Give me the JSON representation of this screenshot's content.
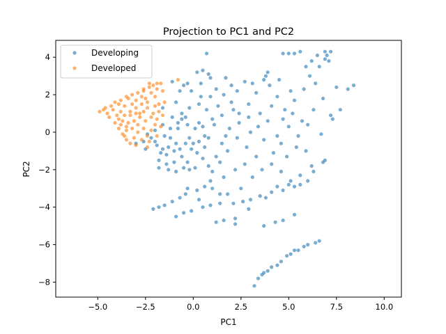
{
  "chart_data": {
    "type": "scatter",
    "title": "Projection to PC1 and PC2",
    "xlabel": "PC1",
    "ylabel": "PC2",
    "xlim": [
      -7.2,
      10.9
    ],
    "ylim": [
      -8.8,
      4.9
    ],
    "xticks": [
      -5.0,
      -2.5,
      0.0,
      2.5,
      5.0,
      7.5,
      10.0
    ],
    "xtick_labels": [
      "−5.0",
      "−2.5",
      "0.0",
      "2.5",
      "5.0",
      "7.5",
      "10.0"
    ],
    "yticks": [
      -8,
      -6,
      -4,
      -2,
      0,
      2,
      4
    ],
    "ytick_labels": [
      "−8",
      "−6",
      "−4",
      "−2",
      "0",
      "2",
      "4"
    ],
    "grid": false,
    "legend_position": "top-left",
    "series": [
      {
        "name": "Developing",
        "color": "#1f77b4",
        "points": [
          [
            0.7,
            4.2
          ],
          [
            0.5,
            3.3
          ],
          [
            0.2,
            3.2
          ],
          [
            -1.1,
            2.7
          ],
          [
            -0.7,
            2.2
          ],
          [
            -0.5,
            2.5
          ],
          [
            -0.3,
            2.6
          ],
          [
            0.8,
            3.1
          ],
          [
            0.4,
            2.6
          ],
          [
            0.9,
            2.9
          ],
          [
            -0.6,
            0.7
          ],
          [
            -1.2,
            -0.3
          ],
          [
            -0.9,
            -0.6
          ],
          [
            -1.4,
            -1.2
          ],
          [
            -1.0,
            -1.6
          ],
          [
            -0.5,
            -1.9
          ],
          [
            -0.2,
            -0.3
          ],
          [
            -0.8,
            0.2
          ],
          [
            -0.4,
            0.8
          ],
          [
            0.3,
            0.5
          ],
          [
            0.0,
            -0.6
          ],
          [
            -1.6,
            -0.9
          ],
          [
            -2.0,
            -0.5
          ],
          [
            -1.8,
            -1.5
          ],
          [
            -1.3,
            -2.0
          ],
          [
            -0.6,
            -1.3
          ],
          [
            0.2,
            -1.1
          ],
          [
            0.6,
            -0.2
          ],
          [
            1.0,
            0.7
          ],
          [
            1.3,
            1.4
          ],
          [
            0.9,
            1.9
          ],
          [
            1.6,
            2.0
          ],
          [
            2.0,
            1.6
          ],
          [
            2.4,
            1.0
          ],
          [
            2.9,
            1.5
          ],
          [
            3.3,
            2.1
          ],
          [
            3.7,
            2.8
          ],
          [
            3.8,
            3.0
          ],
          [
            4.0,
            2.5
          ],
          [
            4.4,
            1.9
          ],
          [
            4.8,
            1.2
          ],
          [
            5.3,
            1.7
          ],
          [
            5.8,
            2.3
          ],
          [
            6.1,
            3.0
          ],
          [
            6.6,
            3.5
          ],
          [
            7.0,
            4.1
          ],
          [
            6.9,
            4.3
          ],
          [
            7.5,
            2.4
          ],
          [
            8.1,
            2.3
          ],
          [
            8.4,
            2.5
          ],
          [
            7.7,
            1.2
          ],
          [
            7.3,
            0.7
          ],
          [
            6.7,
            -0.1
          ],
          [
            6.0,
            0.4
          ],
          [
            5.5,
            -0.2
          ],
          [
            5.0,
            0.3
          ],
          [
            4.6,
            -0.6
          ],
          [
            4.2,
            -1.1
          ],
          [
            3.7,
            -0.4
          ],
          [
            3.3,
            -1.3
          ],
          [
            2.8,
            -0.8
          ],
          [
            2.3,
            -0.3
          ],
          [
            1.8,
            -1.0
          ],
          [
            1.4,
            -1.6
          ],
          [
            1.0,
            -2.1
          ],
          [
            1.6,
            -2.4
          ],
          [
            2.2,
            -2.0
          ],
          [
            2.7,
            -1.7
          ],
          [
            3.1,
            -2.4
          ],
          [
            3.6,
            -2.0
          ],
          [
            4.1,
            -1.7
          ],
          [
            4.6,
            -2.1
          ],
          [
            5.1,
            -2.6
          ],
          [
            5.6,
            -2.3
          ],
          [
            6.2,
            -1.8
          ],
          [
            6.8,
            -1.6
          ],
          [
            5.9,
            -1.0
          ],
          [
            5.4,
            -0.8
          ],
          [
            4.9,
            -1.3
          ],
          [
            4.4,
            -0.2
          ],
          [
            3.9,
            0.6
          ],
          [
            3.4,
            0.3
          ],
          [
            2.9,
            0.8
          ],
          [
            2.4,
            0.5
          ],
          [
            1.9,
            0.2
          ],
          [
            1.5,
            0.9
          ],
          [
            2.1,
            1.2
          ],
          [
            3.0,
            0.0
          ],
          [
            3.5,
            1.0
          ],
          [
            4.1,
            1.4
          ],
          [
            4.7,
            0.7
          ],
          [
            5.2,
            1.0
          ],
          [
            5.7,
            0.6
          ],
          [
            6.3,
            1.2
          ],
          [
            6.8,
            1.8
          ],
          [
            7.2,
            0.9
          ],
          [
            6.4,
            2.6
          ],
          [
            5.1,
            2.2
          ],
          [
            4.5,
            2.8
          ],
          [
            3.9,
            3.2
          ],
          [
            -2.1,
            -4.1
          ],
          [
            -1.8,
            -4.0
          ],
          [
            -1.5,
            -3.9
          ],
          [
            -1.1,
            -3.7
          ],
          [
            -0.7,
            -3.5
          ],
          [
            -0.4,
            -3.3
          ],
          [
            0.2,
            -3.1
          ],
          [
            0.6,
            -2.9
          ],
          [
            0.9,
            -2.6
          ],
          [
            -0.9,
            -4.5
          ],
          [
            -0.5,
            -4.3
          ],
          [
            -0.1,
            -4.2
          ],
          [
            0.5,
            -4.0
          ],
          [
            0.9,
            -3.9
          ],
          [
            1.4,
            -3.8
          ],
          [
            2.1,
            -3.8
          ],
          [
            2.6,
            -3.7
          ],
          [
            3.0,
            -3.6
          ],
          [
            3.5,
            -3.4
          ],
          [
            4.1,
            -3.2
          ],
          [
            4.4,
            -2.9
          ],
          [
            5.0,
            -2.8
          ],
          [
            5.6,
            -2.8
          ],
          [
            6.0,
            -2.6
          ],
          [
            6.3,
            -2.1
          ],
          [
            6.9,
            -1.5
          ],
          [
            1.2,
            -4.8
          ],
          [
            1.6,
            -4.7
          ],
          [
            2.2,
            -4.6
          ],
          [
            2.2,
            -4.9
          ],
          [
            1.4,
            -3.3
          ],
          [
            1.8,
            -3.3
          ],
          [
            2.5,
            -3.0
          ],
          [
            1.0,
            -3.0
          ],
          [
            0.3,
            -3.6
          ],
          [
            -0.3,
            -3.0
          ],
          [
            3.8,
            -3.5
          ],
          [
            4.7,
            -3.1
          ],
          [
            5.3,
            -2.9
          ],
          [
            2.9,
            -4.1
          ],
          [
            3.7,
            -5.0
          ],
          [
            4.3,
            -4.8
          ],
          [
            4.7,
            -4.7
          ],
          [
            5.3,
            -4.4
          ],
          [
            5.8,
            -6.1
          ],
          [
            6.0,
            -6.0
          ],
          [
            6.4,
            -5.9
          ],
          [
            6.6,
            -5.8
          ],
          [
            5.5,
            -6.3
          ],
          [
            5.3,
            -6.3
          ],
          [
            4.9,
            -6.6
          ],
          [
            4.6,
            -6.9
          ],
          [
            4.1,
            -7.2
          ],
          [
            3.9,
            -7.4
          ],
          [
            3.6,
            -7.6
          ],
          [
            3.4,
            -7.8
          ],
          [
            3.2,
            -8.2
          ],
          [
            3.7,
            -7.5
          ],
          [
            4.4,
            -7.1
          ],
          [
            5.1,
            -6.5
          ],
          [
            -3.0,
            -0.6
          ],
          [
            -2.6,
            -0.5
          ],
          [
            -2.2,
            -0.3
          ],
          [
            -1.9,
            -0.7
          ],
          [
            -1.7,
            -1.1
          ],
          [
            -1.3,
            -0.8
          ],
          [
            -1.0,
            -1.0
          ],
          [
            -0.7,
            -0.9
          ],
          [
            -0.4,
            -0.6
          ],
          [
            -0.1,
            -0.9
          ],
          [
            0.3,
            -0.5
          ],
          [
            0.6,
            -0.8
          ],
          [
            -1.5,
            -0.2
          ],
          [
            -1.2,
            0.2
          ],
          [
            -0.8,
            0.5
          ],
          [
            -0.3,
            0.4
          ],
          [
            0.1,
            0.2
          ],
          [
            0.5,
            0.3
          ],
          [
            0.8,
            -0.3
          ],
          [
            -2.4,
            -0.1
          ],
          [
            -2.0,
            0.1
          ],
          [
            -1.6,
            0.4
          ],
          [
            -1.1,
            0.8
          ],
          [
            -0.6,
            1.0
          ],
          [
            -0.2,
            1.3
          ],
          [
            0.3,
            1.5
          ],
          [
            0.7,
            1.2
          ],
          [
            1.1,
            0.4
          ],
          [
            -1.4,
            -1.7
          ],
          [
            -0.9,
            -2.1
          ],
          [
            -0.3,
            -1.6
          ],
          [
            0.1,
            -1.9
          ],
          [
            0.5,
            -1.4
          ],
          [
            1.2,
            -1.3
          ],
          [
            1.5,
            -0.6
          ],
          [
            -2.5,
            -0.9
          ],
          [
            -1.8,
            -1.9
          ],
          [
            -0.2,
            -2.0
          ],
          [
            0.8,
            -1.8
          ],
          [
            1.7,
            -0.2
          ],
          [
            5.3,
            4.2
          ],
          [
            5.6,
            4.3
          ],
          [
            5.0,
            4.2
          ],
          [
            4.7,
            4.2
          ],
          [
            6.5,
            4.1
          ],
          [
            6.9,
            3.9
          ],
          [
            7.1,
            3.8
          ],
          [
            5.9,
            3.5
          ],
          [
            6.2,
            3.8
          ],
          [
            7.2,
            4.3
          ],
          [
            2.0,
            2.5
          ],
          [
            2.7,
            2.7
          ],
          [
            3.1,
            2.6
          ],
          [
            1.2,
            2.3
          ],
          [
            0.4,
            1.9
          ],
          [
            -0.1,
            2.2
          ],
          [
            -0.9,
            1.6
          ],
          [
            -1.6,
            1.3
          ],
          [
            1.7,
            2.9
          ],
          [
            2.3,
            2.2
          ]
        ]
      },
      {
        "name": "Developed",
        "color": "#ff7f0e",
        "points": [
          [
            -4.9,
            1.1
          ],
          [
            -4.6,
            1.3
          ],
          [
            -4.3,
            1.4
          ],
          [
            -4.1,
            1.6
          ],
          [
            -3.8,
            1.7
          ],
          [
            -3.5,
            1.9
          ],
          [
            -3.2,
            2.0
          ],
          [
            -2.9,
            2.1
          ],
          [
            -2.6,
            2.2
          ],
          [
            -2.3,
            2.4
          ],
          [
            -2.1,
            2.5
          ],
          [
            -1.9,
            2.6
          ],
          [
            -1.7,
            2.6
          ],
          [
            -0.8,
            2.8
          ],
          [
            -4.4,
            0.8
          ],
          [
            -4.1,
            0.5
          ],
          [
            -3.9,
            0.2
          ],
          [
            -3.7,
            -0.1
          ],
          [
            -3.5,
            -0.4
          ],
          [
            -3.3,
            -0.6
          ],
          [
            -3.0,
            -0.7
          ],
          [
            -2.7,
            -0.4
          ],
          [
            -2.4,
            -0.2
          ],
          [
            -2.2,
            0.1
          ],
          [
            -2.0,
            0.4
          ],
          [
            -1.9,
            0.7
          ],
          [
            -2.1,
            1.0
          ],
          [
            -2.4,
            1.3
          ],
          [
            -2.7,
            1.5
          ],
          [
            -3.0,
            1.3
          ],
          [
            -3.3,
            1.1
          ],
          [
            -3.6,
            0.9
          ],
          [
            -3.9,
            0.7
          ],
          [
            -3.4,
            0.5
          ],
          [
            -3.1,
            0.6
          ],
          [
            -2.8,
            0.8
          ],
          [
            -2.5,
            0.6
          ],
          [
            -2.6,
            0.2
          ],
          [
            -2.9,
            0.0
          ],
          [
            -3.2,
            0.2
          ],
          [
            -3.5,
            0.3
          ],
          [
            -3.8,
            1.1
          ],
          [
            -4.2,
            1.2
          ],
          [
            -3.6,
            1.4
          ],
          [
            -3.0,
            1.7
          ],
          [
            -2.5,
            1.8
          ],
          [
            -2.0,
            1.9
          ],
          [
            -1.8,
            1.5
          ],
          [
            -1.6,
            0.9
          ],
          [
            -1.7,
            0.3
          ],
          [
            -1.9,
            -0.2
          ],
          [
            -2.3,
            -0.5
          ],
          [
            -2.9,
            0.4
          ],
          [
            -3.3,
            0.9
          ],
          [
            -2.2,
            0.8
          ],
          [
            -2.6,
            1.1
          ],
          [
            -3.7,
            0.6
          ],
          [
            -4.0,
            0.9
          ],
          [
            -3.1,
            -0.3
          ],
          [
            -2.4,
            -0.8
          ],
          [
            -3.6,
            -0.2
          ],
          [
            -3.8,
            0.4
          ],
          [
            -2.8,
            1.0
          ],
          [
            -3.2,
            1.5
          ],
          [
            -2.4,
            1.6
          ],
          [
            -2.0,
            1.4
          ],
          [
            -1.8,
            1.1
          ],
          [
            -1.9,
            2.3
          ],
          [
            -2.2,
            2.1
          ],
          [
            -2.7,
            1.9
          ],
          [
            -3.4,
            1.8
          ],
          [
            -3.9,
            1.5
          ],
          [
            -4.5,
            1.0
          ],
          [
            -4.7,
            1.2
          ],
          [
            -2.6,
            2.3
          ],
          [
            -2.3,
            2.6
          ],
          [
            -1.5,
            1.6
          ],
          [
            -1.6,
            2.2
          ],
          [
            -3.5,
            0.1
          ],
          [
            -3.0,
            1.0
          ]
        ]
      }
    ]
  }
}
